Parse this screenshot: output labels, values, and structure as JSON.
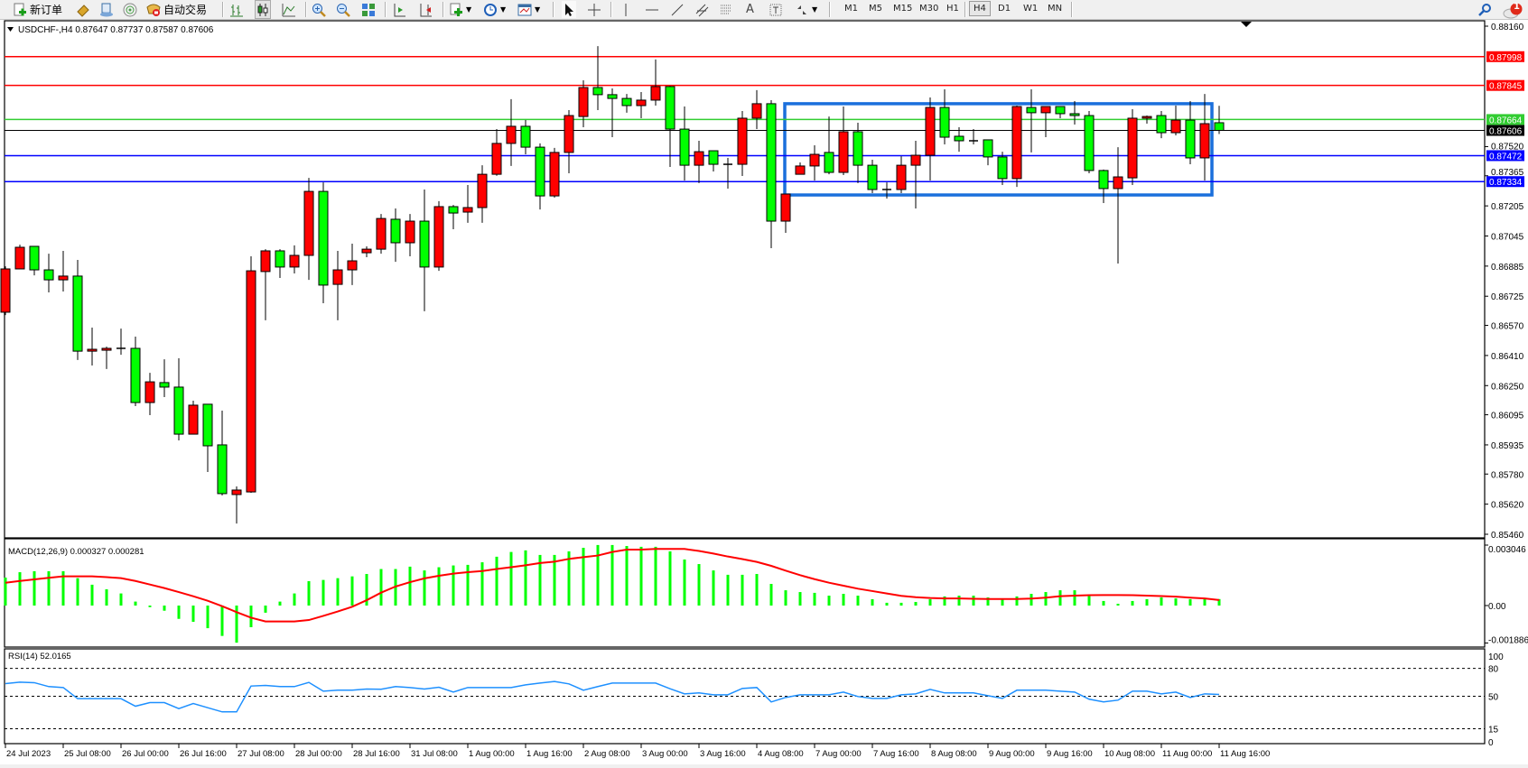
{
  "toolbar": {
    "new_order_label": "新订单",
    "auto_trade_label": "自动交易",
    "timeframes": [
      "M1",
      "M5",
      "M15",
      "M30",
      "H1",
      "H4",
      "D1",
      "W1",
      "MN"
    ],
    "selected_timeframe": "H4",
    "notification_count": "1"
  },
  "chart_header": {
    "symbol_line": "USDCHF-,H4  0.87647 0.87737 0.87587 0.87606"
  },
  "macd_header": "MACD(12,26,9) 0.000327 0.000281",
  "rsi_header": "RSI(14) 52.0165",
  "colors": {
    "bull": "#ff0000",
    "bear": "#00ff00",
    "outline": "#000000",
    "macd_hist": "#00ff00",
    "macd_signal": "#ff0000",
    "rsi_line": "#1e90ff",
    "box": "#1a6fdc"
  },
  "chart_data": [
    {
      "type": "candlestick",
      "symbol": "USDCHF-",
      "timeframe": "H4",
      "ylim": [
        0.8546,
        0.8816
      ],
      "y_ticks": [
        "0.88160",
        "0.87520",
        "0.87365",
        "0.87205",
        "0.87045",
        "0.86885",
        "0.86725",
        "0.86570",
        "0.86410",
        "0.86250",
        "0.86095",
        "0.85935",
        "0.85780",
        "0.85620",
        "0.85460"
      ],
      "x_tick_labels": [
        "24 Jul 2023",
        "25 Jul 08:00",
        "26 Jul 00:00",
        "26 Jul 16:00",
        "27 Jul 08:00",
        "28 Jul 00:00",
        "28 Jul 16:00",
        "31 Jul 08:00",
        "1 Aug 00:00",
        "1 Aug 16:00",
        "2 Aug 08:00",
        "3 Aug 00:00",
        "3 Aug 16:00",
        "4 Aug 08:00",
        "7 Aug 00:00",
        "7 Aug 16:00",
        "8 Aug 08:00",
        "9 Aug 00:00",
        "9 Aug 16:00",
        "10 Aug 08:00",
        "11 Aug 00:00",
        "11 Aug 16:00"
      ],
      "x_tick_every_bars": 4,
      "ohlc": [
        [
          0.8664,
          0.86884,
          0.86625,
          0.8687
        ],
        [
          0.8687,
          0.86999,
          0.8687,
          0.86985
        ],
        [
          0.8699,
          0.8699,
          0.86836,
          0.86865
        ],
        [
          0.86865,
          0.86951,
          0.86745,
          0.86812
        ],
        [
          0.86812,
          0.86966,
          0.8675,
          0.86832
        ],
        [
          0.86832,
          0.86918,
          0.86386,
          0.86433
        ],
        [
          0.86433,
          0.86558,
          0.86357,
          0.86443
        ],
        [
          0.86438,
          0.86457,
          0.86338,
          0.86448
        ],
        [
          0.86447,
          0.86553,
          0.86414,
          0.86448
        ],
        [
          0.86448,
          0.8651,
          0.86141,
          0.8616
        ],
        [
          0.8616,
          0.86318,
          0.86093,
          0.8627
        ],
        [
          0.86266,
          0.8639,
          0.86189,
          0.86242
        ],
        [
          0.86242,
          0.86395,
          0.85959,
          0.85992
        ],
        [
          0.85992,
          0.8617,
          0.85992,
          0.86146
        ],
        [
          0.86151,
          0.86151,
          0.85791,
          0.8593
        ],
        [
          0.85935,
          0.86117,
          0.85666,
          0.85676
        ],
        [
          0.85671,
          0.85714,
          0.85517,
          0.85695
        ],
        [
          0.85685,
          0.86937,
          0.8568,
          0.8686
        ],
        [
          0.86856,
          0.86975,
          0.86597,
          0.86966
        ],
        [
          0.86966,
          0.86975,
          0.86822,
          0.8688
        ],
        [
          0.8688,
          0.86995,
          0.86846,
          0.86942
        ],
        [
          0.86942,
          0.87354,
          0.86812,
          0.87282
        ],
        [
          0.87282,
          0.8733,
          0.86688,
          0.86784
        ],
        [
          0.86788,
          0.86966,
          0.86597,
          0.86865
        ],
        [
          0.86865,
          0.87004,
          0.86784,
          0.86913
        ],
        [
          0.86956,
          0.8699,
          0.86932,
          0.86975
        ],
        [
          0.86975,
          0.87162,
          0.86951,
          0.87138
        ],
        [
          0.87134,
          0.87191,
          0.86908,
          0.87009
        ],
        [
          0.87009,
          0.87162,
          0.86937,
          0.87124
        ],
        [
          0.87124,
          0.87292,
          0.86645,
          0.8688
        ],
        [
          0.8688,
          0.8723,
          0.8686,
          0.87201
        ],
        [
          0.87201,
          0.8721,
          0.87081,
          0.87167
        ],
        [
          0.87172,
          0.87316,
          0.87115,
          0.87196
        ],
        [
          0.87196,
          0.87421,
          0.87115,
          0.87373
        ],
        [
          0.87373,
          0.87613,
          0.87365,
          0.87537
        ],
        [
          0.87537,
          0.87772,
          0.87417,
          0.87628
        ],
        [
          0.87628,
          0.87661,
          0.87479,
          0.87517
        ],
        [
          0.87517,
          0.87537,
          0.87186,
          0.87258
        ],
        [
          0.87258,
          0.87513,
          0.87249,
          0.87489
        ],
        [
          0.87489,
          0.87714,
          0.87378,
          0.87685
        ],
        [
          0.8768,
          0.87872,
          0.87623,
          0.87834
        ],
        [
          0.87834,
          0.88054,
          0.87714,
          0.87796
        ],
        [
          0.87796,
          0.87829,
          0.8757,
          0.87776
        ],
        [
          0.87776,
          0.878,
          0.877,
          0.87738
        ],
        [
          0.87738,
          0.8781,
          0.87671,
          0.87767
        ],
        [
          0.87767,
          0.87983,
          0.87738,
          0.87839
        ],
        [
          0.87839,
          0.87843,
          0.87412,
          0.87613
        ],
        [
          0.87613,
          0.87733,
          0.8734,
          0.87421
        ],
        [
          0.87421,
          0.87551,
          0.87326,
          0.87493
        ],
        [
          0.87498,
          0.87498,
          0.87388,
          0.87426
        ],
        [
          0.87426,
          0.8746,
          0.87297,
          0.87426
        ],
        [
          0.87426,
          0.87709,
          0.87364,
          0.87671
        ],
        [
          0.87671,
          0.8782,
          0.87613,
          0.87748
        ],
        [
          0.87748,
          0.87767,
          0.8698,
          0.87124
        ],
        [
          0.87124,
          0.87268,
          0.87062,
          0.87268
        ],
        [
          0.87373,
          0.87436,
          0.87373,
          0.87417
        ],
        [
          0.87417,
          0.87527,
          0.8734,
          0.87479
        ],
        [
          0.87489,
          0.8768,
          0.87373,
          0.87383
        ],
        [
          0.87383,
          0.87733,
          0.87369,
          0.87599
        ],
        [
          0.87599,
          0.87647,
          0.87326,
          0.87421
        ],
        [
          0.87421,
          0.8745,
          0.87273,
          0.87292
        ],
        [
          0.87292,
          0.8733,
          0.87244,
          0.87292
        ],
        [
          0.87292,
          0.87469,
          0.87273,
          0.87421
        ],
        [
          0.87421,
          0.87551,
          0.87191,
          0.87474
        ],
        [
          0.87474,
          0.87781,
          0.8734,
          0.87728
        ],
        [
          0.87728,
          0.87824,
          0.87532,
          0.8757
        ],
        [
          0.87575,
          0.87623,
          0.87493,
          0.87551
        ],
        [
          0.87551,
          0.87613,
          0.87532,
          0.87551
        ],
        [
          0.87556,
          0.87556,
          0.87421,
          0.87465
        ],
        [
          0.87465,
          0.87493,
          0.87316,
          0.8735
        ],
        [
          0.8735,
          0.87738,
          0.87306,
          0.87733
        ],
        [
          0.87728,
          0.87824,
          0.87489,
          0.877
        ],
        [
          0.877,
          0.87733,
          0.8757,
          0.87733
        ],
        [
          0.87733,
          0.87733,
          0.87671,
          0.87695
        ],
        [
          0.87695,
          0.87762,
          0.87637,
          0.87685
        ],
        [
          0.87685,
          0.87709,
          0.87378,
          0.87393
        ],
        [
          0.87393,
          0.87398,
          0.8722,
          0.87297
        ],
        [
          0.87297,
          0.87517,
          0.86899,
          0.87359
        ],
        [
          0.87354,
          0.87719,
          0.87316,
          0.87671
        ],
        [
          0.87671,
          0.87685,
          0.87642,
          0.8768
        ],
        [
          0.87685,
          0.87709,
          0.87565,
          0.87594
        ],
        [
          0.87594,
          0.87738,
          0.8758,
          0.87661
        ],
        [
          0.87661,
          0.87762,
          0.87426,
          0.8746
        ],
        [
          0.8746,
          0.878,
          0.8734,
          0.87642
        ],
        [
          0.87647,
          0.87737,
          0.87587,
          0.87606
        ]
      ],
      "horizontal_lines": [
        {
          "price": "0.87998",
          "color": "#ff0000",
          "label_text": "#ffffff"
        },
        {
          "price": "0.87845",
          "color": "#ff0000",
          "label_text": "#ffffff"
        },
        {
          "price": "0.87664",
          "color": "#32cd32",
          "label_text": "#ffffff"
        },
        {
          "price": "0.87606",
          "color": "#000000",
          "label_text": "#ffffff",
          "kind": "bid"
        },
        {
          "price": "0.87472",
          "color": "#0000ff",
          "label_text": "#ffffff"
        },
        {
          "price": "0.87334",
          "color": "#0000ff",
          "label_text": "#ffffff"
        }
      ],
      "rectangle": {
        "from_bar": 54,
        "to_bar": 83.5,
        "top": 0.87748,
        "bottom": 0.87263,
        "color": "#1a6fdc"
      }
    },
    {
      "type": "bar+line",
      "indicator": "MACD(12,26,9)",
      "ylim": [
        -0.001886,
        0.003046
      ],
      "y_ticks": [
        "0.003046",
        "0.00",
        "-0.001886"
      ],
      "histogram": [
        0.00141,
        0.00168,
        0.00173,
        0.00173,
        0.00173,
        0.00138,
        0.00105,
        0.00082,
        0.00061,
        0.0002,
        -8e-05,
        -0.00026,
        -0.00067,
        -0.00082,
        -0.00114,
        -0.00153,
        -0.00187,
        -0.00109,
        -0.00036,
        0.0002,
        0.00061,
        0.00123,
        0.00129,
        0.00138,
        0.00147,
        0.00159,
        0.00184,
        0.00184,
        0.00196,
        0.00177,
        0.00193,
        0.00202,
        0.00205,
        0.00218,
        0.00246,
        0.0027,
        0.00278,
        0.00255,
        0.00255,
        0.00273,
        0.00291,
        0.00305,
        0.00305,
        0.003,
        0.00296,
        0.00296,
        0.00273,
        0.00232,
        0.00209,
        0.00177,
        0.00155,
        0.00155,
        0.00159,
        0.00109,
        0.00077,
        0.00068,
        0.00064,
        0.0005,
        0.00059,
        0.0005,
        0.00032,
        0.00014,
        0.00014,
        0.00018,
        0.00032,
        0.00046,
        0.0005,
        0.0005,
        0.00041,
        0.00032,
        0.00046,
        0.00059,
        0.00068,
        0.00077,
        0.00077,
        0.0005,
        0.00023,
        9e-05,
        0.00023,
        0.00032,
        0.00041,
        0.00036,
        0.00032,
        0.00032,
        0.000327
      ],
      "signal": [
        0.00115,
        0.00124,
        0.00132,
        0.0014,
        0.00147,
        0.00147,
        0.00147,
        0.00143,
        0.00138,
        0.00124,
        0.00106,
        0.00088,
        0.00068,
        0.00047,
        0.00024,
        -3e-05,
        -0.00033,
        -0.00061,
        -0.0008,
        -0.0008,
        -0.0008,
        -0.00073,
        -0.00052,
        -0.0003,
        -6e-05,
        0.00027,
        0.00065,
        0.00096,
        0.00118,
        0.00137,
        0.0015,
        0.00161,
        0.00168,
        0.00174,
        0.00184,
        0.00193,
        0.00203,
        0.00214,
        0.00221,
        0.00235,
        0.00244,
        0.00252,
        0.0027,
        0.00282,
        0.00282,
        0.00285,
        0.00285,
        0.00285,
        0.00275,
        0.00262,
        0.00247,
        0.00234,
        0.0022,
        0.002,
        0.00176,
        0.00153,
        0.00133,
        0.00115,
        0.001,
        0.00085,
        0.00073,
        0.00061,
        0.00049,
        0.00042,
        0.00038,
        0.00036,
        0.00036,
        0.00034,
        0.00033,
        0.00033,
        0.00033,
        0.00035,
        0.0004,
        0.00047,
        0.0005,
        0.00052,
        0.00053,
        0.00053,
        0.00052,
        0.0005,
        0.00048,
        0.00045,
        0.0004,
        0.00036,
        0.000281
      ]
    },
    {
      "type": "line",
      "indicator": "RSI(14)",
      "ylim": [
        0,
        100
      ],
      "y_ticks": [
        "100",
        "80",
        "50",
        "15",
        "0"
      ],
      "levels": [
        80,
        50,
        15
      ],
      "values": [
        63.6,
        65.2,
        64.6,
        60.4,
        59.4,
        47.4,
        47.4,
        47.4,
        47.4,
        39.3,
        43.2,
        43.2,
        36.7,
        42.2,
        37.7,
        33.2,
        33.2,
        61.0,
        61.7,
        60.4,
        60.4,
        64.9,
        55.5,
        56.5,
        56.5,
        57.8,
        57.5,
        60.4,
        59.4,
        57.8,
        59.7,
        54.5,
        59.4,
        59.4,
        59.4,
        59.4,
        62.3,
        64.2,
        65.9,
        63.3,
        56.5,
        60.4,
        64.2,
        64.2,
        64.2,
        64.2,
        58.1,
        52.6,
        53.6,
        51.6,
        51.6,
        58.4,
        59.4,
        43.9,
        48.7,
        51.6,
        51.6,
        51.6,
        54.5,
        49.7,
        47.7,
        47.7,
        51.6,
        52.6,
        57.4,
        53.6,
        53.6,
        53.6,
        50.6,
        47.7,
        56.5,
        56.5,
        56.5,
        55.5,
        54.5,
        46.8,
        43.9,
        45.8,
        55.5,
        55.5,
        52.6,
        54.5,
        48.7,
        52.6,
        52.0
      ]
    }
  ]
}
